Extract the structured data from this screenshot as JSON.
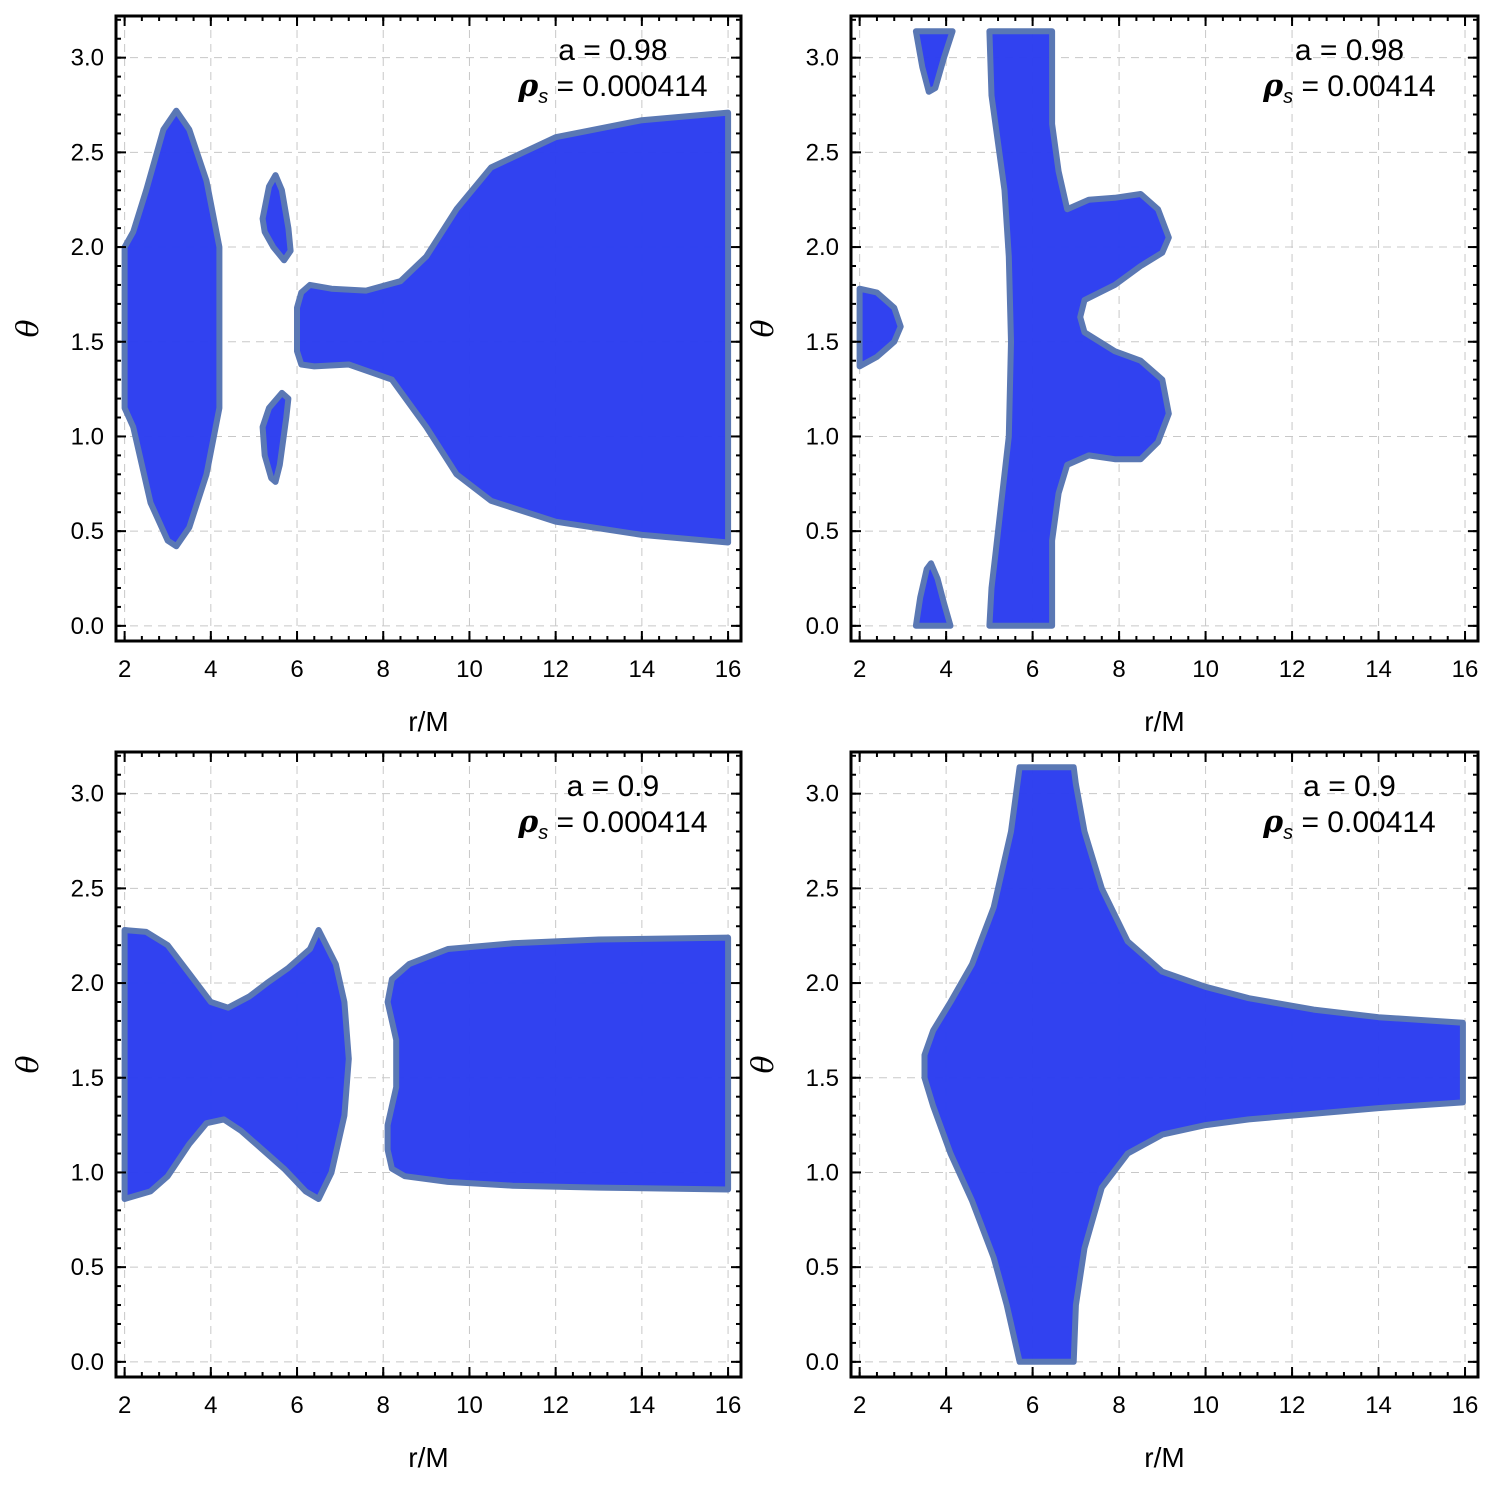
{
  "chart_data": [
    {
      "type": "contour",
      "xlabel": "r/M",
      "ylabel": "θ",
      "xlim": [
        1.8,
        16.3
      ],
      "ylim": [
        -0.08,
        3.22
      ],
      "xticks": [
        2,
        4,
        6,
        8,
        10,
        12,
        14,
        16
      ],
      "yticks": [
        0.0,
        0.5,
        1.0,
        1.5,
        2.0,
        2.5,
        3.0
      ],
      "grid": true,
      "annotation": {
        "a_text": "a = 0.98",
        "rho_symbol": "ρ",
        "rho_sub": "s",
        "rho_value": " = 0.000414"
      },
      "regions": [
        [
          [
            2.0,
            1.15
          ],
          [
            2.2,
            1.05
          ],
          [
            2.6,
            0.65
          ],
          [
            3.0,
            0.45
          ],
          [
            3.2,
            0.42
          ],
          [
            3.5,
            0.52
          ],
          [
            3.9,
            0.8
          ],
          [
            4.2,
            1.15
          ],
          [
            4.2,
            2.0
          ],
          [
            3.9,
            2.35
          ],
          [
            3.5,
            2.62
          ],
          [
            3.2,
            2.72
          ],
          [
            2.9,
            2.62
          ],
          [
            2.5,
            2.3
          ],
          [
            2.2,
            2.08
          ],
          [
            2.0,
            2.0
          ]
        ],
        [
          [
            5.2,
            2.15
          ],
          [
            5.35,
            2.32
          ],
          [
            5.5,
            2.38
          ],
          [
            5.65,
            2.3
          ],
          [
            5.8,
            2.1
          ],
          [
            5.85,
            1.98
          ],
          [
            5.7,
            1.93
          ],
          [
            5.45,
            2.0
          ],
          [
            5.25,
            2.08
          ]
        ],
        [
          [
            5.2,
            1.05
          ],
          [
            5.25,
            0.9
          ],
          [
            5.4,
            0.78
          ],
          [
            5.5,
            0.76
          ],
          [
            5.6,
            0.85
          ],
          [
            5.75,
            1.1
          ],
          [
            5.8,
            1.2
          ],
          [
            5.65,
            1.23
          ],
          [
            5.35,
            1.15
          ]
        ],
        [
          [
            6.0,
            1.45
          ],
          [
            6.1,
            1.38
          ],
          [
            6.4,
            1.37
          ],
          [
            7.2,
            1.38
          ],
          [
            8.2,
            1.3
          ],
          [
            9.0,
            1.05
          ],
          [
            9.7,
            0.8
          ],
          [
            10.5,
            0.66
          ],
          [
            12.0,
            0.55
          ],
          [
            14.0,
            0.48
          ],
          [
            16.0,
            0.44
          ],
          [
            16.0,
            2.71
          ],
          [
            14.0,
            2.67
          ],
          [
            12.0,
            2.58
          ],
          [
            10.5,
            2.42
          ],
          [
            9.7,
            2.2
          ],
          [
            9.0,
            1.95
          ],
          [
            8.4,
            1.82
          ],
          [
            7.6,
            1.77
          ],
          [
            6.8,
            1.78
          ],
          [
            6.3,
            1.8
          ],
          [
            6.1,
            1.76
          ],
          [
            6.0,
            1.68
          ]
        ]
      ]
    },
    {
      "type": "contour",
      "xlabel": "r/M",
      "ylabel": "θ",
      "xlim": [
        1.8,
        16.3
      ],
      "ylim": [
        -0.08,
        3.22
      ],
      "xticks": [
        2,
        4,
        6,
        8,
        10,
        12,
        14,
        16
      ],
      "yticks": [
        0.0,
        0.5,
        1.0,
        1.5,
        2.0,
        2.5,
        3.0
      ],
      "grid": true,
      "annotation": {
        "a_text": "a = 0.98",
        "rho_symbol": "ρ",
        "rho_sub": "s",
        "rho_value": " = 0.00414"
      },
      "regions": [
        [
          [
            3.3,
            3.14
          ],
          [
            3.45,
            2.95
          ],
          [
            3.6,
            2.82
          ],
          [
            3.75,
            2.84
          ],
          [
            3.95,
            3.0
          ],
          [
            4.15,
            3.14
          ]
        ],
        [
          [
            2.0,
            1.37
          ],
          [
            2.4,
            1.42
          ],
          [
            2.8,
            1.5
          ],
          [
            2.95,
            1.58
          ],
          [
            2.8,
            1.68
          ],
          [
            2.4,
            1.76
          ],
          [
            2.0,
            1.78
          ]
        ],
        [
          [
            3.3,
            0.0
          ],
          [
            3.4,
            0.15
          ],
          [
            3.55,
            0.3
          ],
          [
            3.65,
            0.33
          ],
          [
            3.8,
            0.25
          ],
          [
            3.95,
            0.12
          ],
          [
            4.1,
            0.0
          ]
        ],
        [
          [
            5.0,
            0.0
          ],
          [
            6.45,
            0.0
          ],
          [
            6.45,
            0.45
          ],
          [
            6.6,
            0.7
          ],
          [
            6.8,
            0.85
          ],
          [
            7.3,
            0.9
          ],
          [
            7.9,
            0.88
          ],
          [
            8.5,
            0.88
          ],
          [
            8.9,
            0.97
          ],
          [
            9.15,
            1.12
          ],
          [
            9.0,
            1.3
          ],
          [
            8.5,
            1.4
          ],
          [
            7.9,
            1.45
          ],
          [
            7.2,
            1.55
          ],
          [
            7.1,
            1.63
          ],
          [
            7.2,
            1.72
          ],
          [
            7.9,
            1.8
          ],
          [
            8.5,
            1.9
          ],
          [
            9.0,
            1.97
          ],
          [
            9.15,
            2.05
          ],
          [
            8.9,
            2.2
          ],
          [
            8.5,
            2.28
          ],
          [
            7.9,
            2.26
          ],
          [
            7.3,
            2.25
          ],
          [
            6.8,
            2.2
          ],
          [
            6.6,
            2.4
          ],
          [
            6.45,
            2.65
          ],
          [
            6.45,
            3.14
          ],
          [
            5.0,
            3.14
          ],
          [
            5.05,
            2.8
          ],
          [
            5.2,
            2.55
          ],
          [
            5.35,
            2.3
          ],
          [
            5.45,
            1.95
          ],
          [
            5.5,
            1.5
          ],
          [
            5.45,
            1.0
          ],
          [
            5.3,
            0.7
          ],
          [
            5.15,
            0.4
          ],
          [
            5.05,
            0.2
          ]
        ]
      ]
    },
    {
      "type": "contour",
      "xlabel": "r/M",
      "ylabel": "θ",
      "xlim": [
        1.8,
        16.3
      ],
      "ylim": [
        -0.08,
        3.22
      ],
      "xticks": [
        2,
        4,
        6,
        8,
        10,
        12,
        14,
        16
      ],
      "yticks": [
        0.0,
        0.5,
        1.0,
        1.5,
        2.0,
        2.5,
        3.0
      ],
      "grid": true,
      "annotation": {
        "a_text": "a = 0.9",
        "rho_symbol": "ρ",
        "rho_sub": "s",
        "rho_value": " = 0.000414"
      },
      "regions": [
        [
          [
            2.0,
            0.86
          ],
          [
            2.6,
            0.9
          ],
          [
            3.0,
            0.98
          ],
          [
            3.5,
            1.15
          ],
          [
            3.9,
            1.26
          ],
          [
            4.3,
            1.28
          ],
          [
            4.7,
            1.22
          ],
          [
            5.2,
            1.12
          ],
          [
            5.7,
            1.02
          ],
          [
            6.2,
            0.9
          ],
          [
            6.5,
            0.86
          ],
          [
            6.8,
            1.0
          ],
          [
            7.1,
            1.3
          ],
          [
            7.2,
            1.6
          ],
          [
            7.1,
            1.9
          ],
          [
            6.9,
            2.1
          ],
          [
            6.5,
            2.28
          ],
          [
            6.3,
            2.18
          ],
          [
            5.8,
            2.08
          ],
          [
            5.3,
            2.0
          ],
          [
            4.9,
            1.93
          ],
          [
            4.4,
            1.87
          ],
          [
            4.0,
            1.9
          ],
          [
            3.5,
            2.05
          ],
          [
            3.0,
            2.2
          ],
          [
            2.5,
            2.27
          ],
          [
            2.0,
            2.28
          ]
        ],
        [
          [
            8.2,
            1.02
          ],
          [
            8.5,
            0.98
          ],
          [
            9.5,
            0.95
          ],
          [
            11.0,
            0.93
          ],
          [
            13.0,
            0.92
          ],
          [
            16.0,
            0.91
          ],
          [
            16.0,
            2.24
          ],
          [
            13.0,
            2.23
          ],
          [
            11.0,
            2.21
          ],
          [
            9.5,
            2.18
          ],
          [
            8.6,
            2.1
          ],
          [
            8.2,
            2.02
          ],
          [
            8.1,
            1.9
          ],
          [
            8.3,
            1.7
          ],
          [
            8.3,
            1.45
          ],
          [
            8.1,
            1.25
          ],
          [
            8.1,
            1.12
          ]
        ]
      ]
    },
    {
      "type": "contour",
      "xlabel": "r/M",
      "ylabel": "θ",
      "xlim": [
        1.8,
        16.3
      ],
      "ylim": [
        -0.08,
        3.22
      ],
      "xticks": [
        2,
        4,
        6,
        8,
        10,
        12,
        14,
        16
      ],
      "yticks": [
        0.0,
        0.5,
        1.0,
        1.5,
        2.0,
        2.5,
        3.0
      ],
      "grid": true,
      "annotation": {
        "a_text": "a = 0.9",
        "rho_symbol": "ρ",
        "rho_sub": "s",
        "rho_value": " = 0.00414"
      },
      "regions": [
        [
          [
            5.7,
            0.0
          ],
          [
            6.95,
            0.0
          ],
          [
            7.0,
            0.3
          ],
          [
            7.2,
            0.6
          ],
          [
            7.6,
            0.92
          ],
          [
            8.2,
            1.1
          ],
          [
            9.0,
            1.2
          ],
          [
            10.0,
            1.25
          ],
          [
            11.0,
            1.28
          ],
          [
            12.5,
            1.31
          ],
          [
            14.0,
            1.34
          ],
          [
            15.95,
            1.37
          ],
          [
            15.95,
            1.79
          ],
          [
            14.0,
            1.82
          ],
          [
            12.5,
            1.86
          ],
          [
            11.0,
            1.92
          ],
          [
            10.0,
            1.98
          ],
          [
            9.0,
            2.06
          ],
          [
            8.2,
            2.22
          ],
          [
            7.6,
            2.5
          ],
          [
            7.2,
            2.8
          ],
          [
            7.0,
            3.05
          ],
          [
            6.95,
            3.14
          ],
          [
            5.7,
            3.14
          ],
          [
            5.5,
            2.8
          ],
          [
            5.1,
            2.4
          ],
          [
            4.6,
            2.1
          ],
          [
            4.1,
            1.9
          ],
          [
            3.7,
            1.75
          ],
          [
            3.5,
            1.62
          ],
          [
            3.5,
            1.5
          ],
          [
            3.7,
            1.35
          ],
          [
            4.1,
            1.1
          ],
          [
            4.6,
            0.85
          ],
          [
            5.1,
            0.55
          ],
          [
            5.4,
            0.3
          ]
        ]
      ]
    }
  ]
}
